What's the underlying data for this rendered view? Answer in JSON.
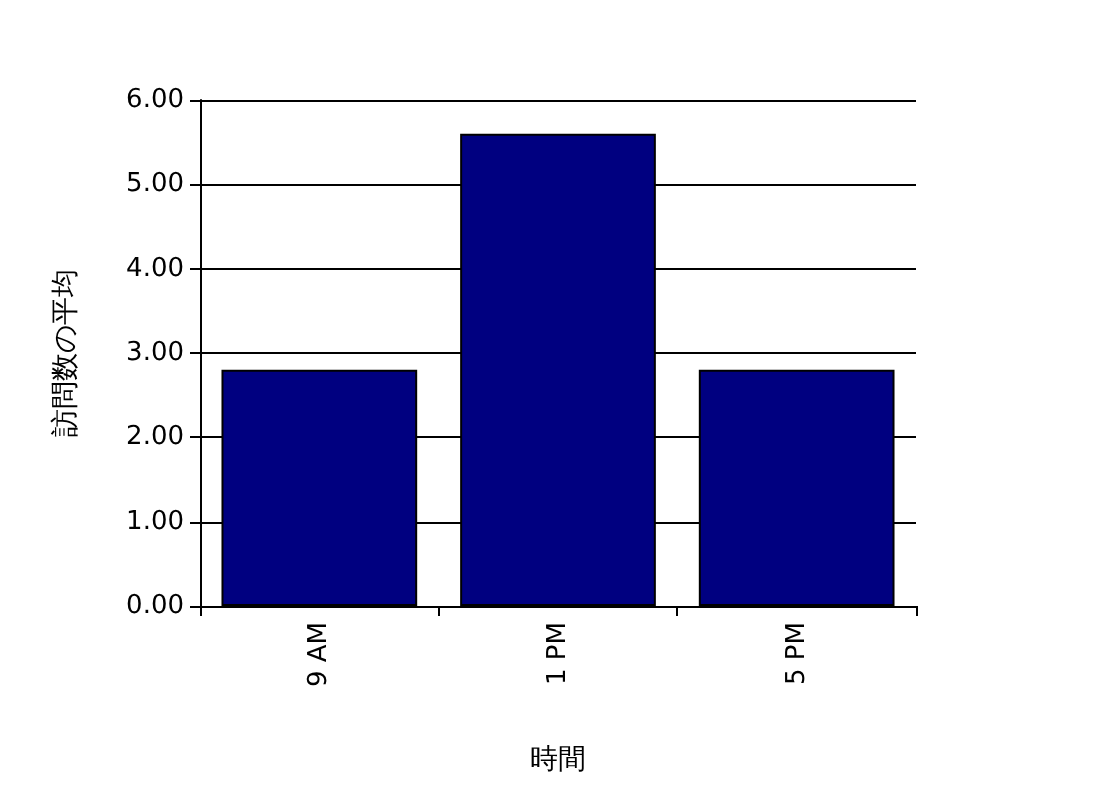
{
  "chart_data": {
    "type": "bar",
    "xlabel": "時間",
    "ylabel": "訪問数の平均",
    "categories": [
      "9 AM",
      "1 PM",
      "5 PM"
    ],
    "values": [
      2.8,
      5.6,
      2.8
    ],
    "color": "#000080",
    "ylim": [
      0,
      6
    ],
    "yticks": [
      {
        "value": 0,
        "label": "0.00"
      },
      {
        "value": 1,
        "label": "1.00"
      },
      {
        "value": 2,
        "label": "2.00"
      },
      {
        "value": 3,
        "label": "3.00"
      },
      {
        "value": 4,
        "label": "4.00"
      },
      {
        "value": 5,
        "label": "5.00"
      },
      {
        "value": 6,
        "label": "6.00"
      }
    ],
    "grid": "y"
  }
}
